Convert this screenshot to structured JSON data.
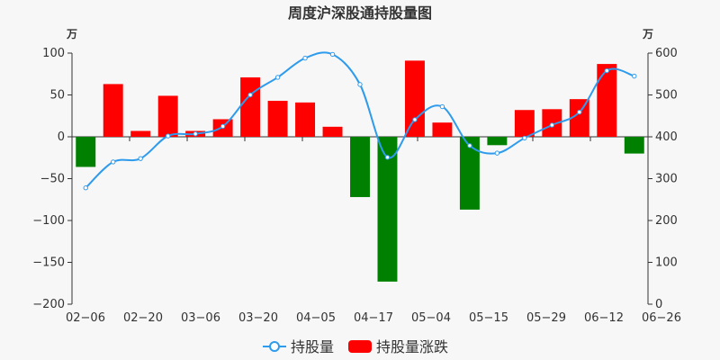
{
  "chart_data": {
    "type": "bar+line",
    "title": "周度沪深股通持股量图",
    "y_left_unit": "万",
    "y_right_unit": "万",
    "y_left_lim": [
      -200,
      100
    ],
    "y_left_ticks": [
      "100",
      "50",
      "0",
      "−50",
      "−100",
      "−150",
      "−200"
    ],
    "y_right_lim": [
      0,
      600
    ],
    "y_right_ticks": [
      "600",
      "500",
      "400",
      "300",
      "200",
      "100",
      "0"
    ],
    "x_tick_labels": [
      "02−06",
      "02−20",
      "03−06",
      "03−20",
      "04−05",
      "04−17",
      "05−04",
      "05−15",
      "05−29",
      "06−12",
      "06−26"
    ],
    "bar_series": {
      "name": "持股量涨跌",
      "positive_color": "#ff0000",
      "negative_color": "#008000",
      "values": [
        -36,
        63,
        7,
        49,
        7,
        21,
        71,
        43,
        41,
        12,
        -72,
        -173,
        91,
        17,
        -87,
        -10,
        32,
        33,
        45,
        87,
        -20
      ]
    },
    "line_series": {
      "name": "持股量",
      "color": "#2f9bec",
      "values": [
        278,
        340,
        348,
        402,
        407,
        425,
        500,
        542,
        588,
        597,
        525,
        351,
        441,
        472,
        379,
        361,
        397,
        428,
        459,
        558,
        545
      ]
    },
    "legend": [
      {
        "label": "持股量",
        "kind": "line",
        "color": "#2f9bec"
      },
      {
        "label": "持股量涨跌",
        "kind": "bar",
        "color": "#ff0000"
      }
    ],
    "legend_position": "bottom-center",
    "grid": false
  }
}
